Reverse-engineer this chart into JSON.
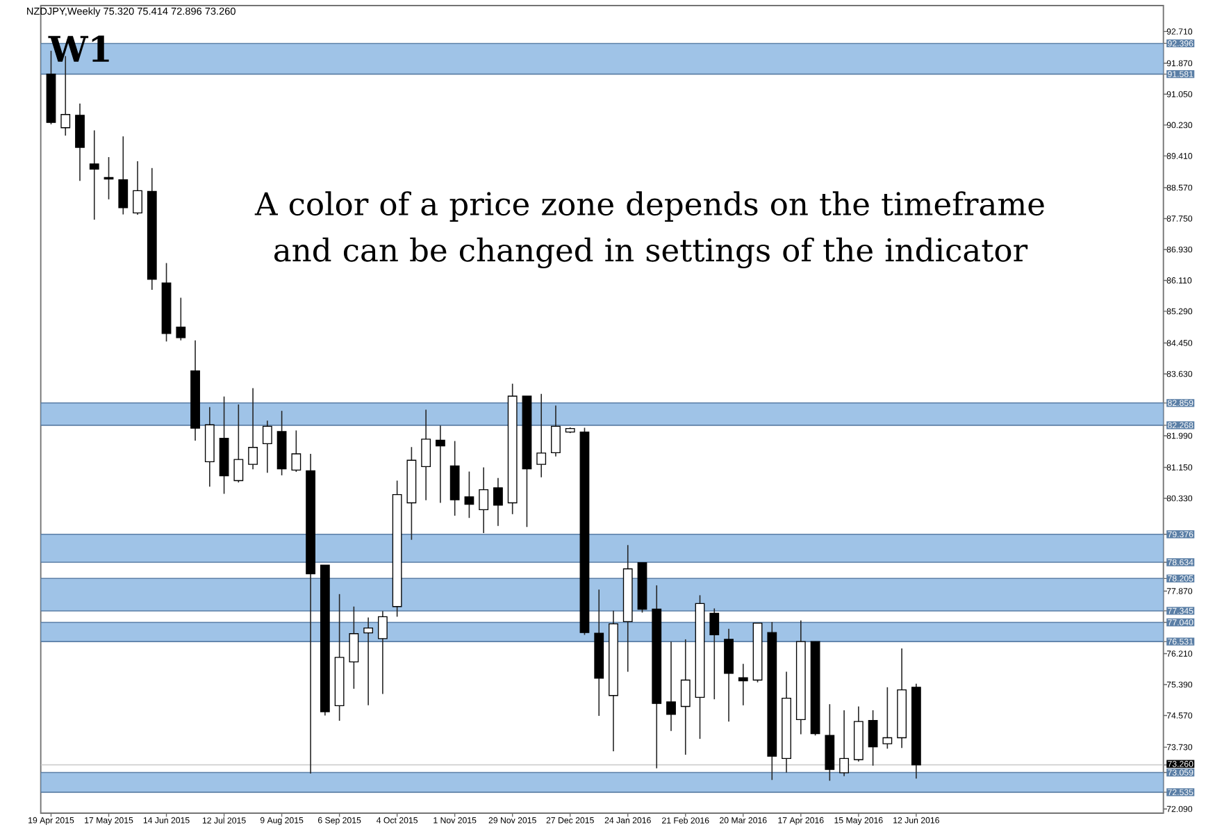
{
  "chart_data": {
    "type": "candlestick",
    "title": "NZDJPY,Weekly  75.320 75.414 72.896 73.260",
    "annotations": [
      "W1",
      "A color of a price zone depends on the timeframe and can be changed in settings of the indicator"
    ],
    "x": [
      "2015-04-19",
      "2015-04-26",
      "2015-05-03",
      "2015-05-10",
      "2015-05-17",
      "2015-05-24",
      "2015-05-31",
      "2015-06-07",
      "2015-06-14",
      "2015-06-21",
      "2015-06-28",
      "2015-07-05",
      "2015-07-12",
      "2015-07-19",
      "2015-07-26",
      "2015-08-02",
      "2015-08-09",
      "2015-08-16",
      "2015-08-23",
      "2015-08-30",
      "2015-09-06",
      "2015-09-13",
      "2015-09-20",
      "2015-09-27",
      "2015-10-04",
      "2015-10-11",
      "2015-10-18",
      "2015-10-25",
      "2015-11-01",
      "2015-11-08",
      "2015-11-15",
      "2015-11-22",
      "2015-11-29",
      "2015-12-06",
      "2015-12-13",
      "2015-12-20",
      "2015-12-27",
      "2016-01-03",
      "2016-01-10",
      "2016-01-17",
      "2016-01-24",
      "2016-01-31",
      "2016-02-07",
      "2016-02-14",
      "2016-02-21",
      "2016-02-28",
      "2016-03-06",
      "2016-03-13",
      "2016-03-20",
      "2016-03-27",
      "2016-04-03",
      "2016-04-10",
      "2016-04-17",
      "2016-04-24",
      "2016-05-01",
      "2016-05-08",
      "2016-05-15",
      "2016-05-22",
      "2016-05-29",
      "2016-06-05",
      "2016-06-12"
    ],
    "ohlc": [
      [
        91.58,
        92.2,
        90.25,
        90.3
      ],
      [
        90.16,
        92.06,
        89.95,
        90.51
      ],
      [
        90.49,
        90.8,
        88.75,
        89.64
      ],
      [
        89.2,
        90.09,
        87.72,
        89.06
      ],
      [
        88.84,
        89.38,
        88.26,
        88.8
      ],
      [
        88.78,
        89.93,
        87.86,
        88.04
      ],
      [
        87.9,
        89.27,
        87.85,
        88.49
      ],
      [
        88.47,
        89.09,
        85.86,
        86.14
      ],
      [
        86.04,
        86.57,
        84.49,
        84.7
      ],
      [
        84.87,
        85.65,
        84.52,
        84.59
      ],
      [
        83.71,
        84.52,
        81.86,
        82.19
      ],
      [
        81.3,
        82.75,
        80.64,
        82.28
      ],
      [
        81.92,
        83.03,
        80.45,
        80.93
      ],
      [
        80.8,
        82.82,
        80.75,
        81.36
      ],
      [
        81.23,
        83.25,
        81.1,
        81.68
      ],
      [
        81.78,
        82.39,
        81.01,
        82.24
      ],
      [
        82.1,
        82.65,
        80.94,
        81.11
      ],
      [
        81.08,
        82.13,
        81.03,
        81.51
      ],
      [
        81.06,
        81.51,
        73.03,
        78.33
      ],
      [
        78.56,
        78.56,
        74.57,
        74.67
      ],
      [
        74.83,
        77.79,
        74.43,
        76.11
      ],
      [
        75.99,
        77.46,
        75.28,
        76.74
      ],
      [
        76.76,
        77.17,
        74.84,
        76.89
      ],
      [
        76.61,
        77.34,
        75.14,
        77.19
      ],
      [
        77.46,
        80.8,
        77.19,
        80.43
      ],
      [
        80.21,
        81.69,
        79.23,
        81.34
      ],
      [
        81.17,
        82.68,
        80.28,
        81.9
      ],
      [
        81.87,
        82.26,
        80.21,
        81.72
      ],
      [
        81.19,
        81.85,
        79.87,
        80.29
      ],
      [
        80.37,
        81.04,
        79.81,
        80.17
      ],
      [
        80.03,
        81.15,
        79.41,
        80.56
      ],
      [
        80.61,
        80.87,
        79.6,
        80.15
      ],
      [
        80.21,
        83.37,
        79.91,
        83.04
      ],
      [
        83.04,
        83.04,
        79.57,
        81.11
      ],
      [
        81.23,
        83.1,
        80.89,
        81.53
      ],
      [
        81.54,
        82.79,
        81.44,
        82.24
      ],
      [
        82.09,
        82.21,
        82.06,
        82.18
      ],
      [
        82.09,
        82.2,
        76.71,
        76.77
      ],
      [
        76.75,
        77.91,
        74.56,
        75.56
      ],
      [
        75.1,
        77.35,
        73.62,
        77.0
      ],
      [
        77.06,
        79.09,
        75.73,
        78.46
      ],
      [
        78.62,
        78.62,
        77.3,
        77.39
      ],
      [
        77.39,
        78.02,
        73.17,
        74.89
      ],
      [
        74.93,
        76.53,
        74.16,
        74.6
      ],
      [
        74.81,
        76.59,
        73.53,
        75.51
      ],
      [
        75.05,
        77.76,
        73.95,
        77.54
      ],
      [
        77.28,
        77.41,
        75.0,
        76.71
      ],
      [
        76.59,
        76.87,
        74.41,
        75.69
      ],
      [
        75.57,
        75.94,
        74.84,
        75.49
      ],
      [
        75.51,
        77.02,
        75.45,
        77.02
      ],
      [
        76.77,
        77.05,
        72.86,
        73.49
      ],
      [
        73.43,
        75.73,
        73.06,
        75.03
      ],
      [
        74.46,
        77.09,
        74.07,
        76.53
      ],
      [
        76.53,
        76.53,
        74.04,
        74.09
      ],
      [
        74.04,
        74.87,
        72.84,
        73.14
      ],
      [
        73.05,
        74.71,
        72.96,
        73.43
      ],
      [
        73.4,
        74.81,
        73.35,
        74.41
      ],
      [
        74.44,
        74.71,
        73.24,
        73.74
      ],
      [
        73.82,
        75.32,
        73.69,
        73.98
      ],
      [
        73.98,
        76.35,
        73.71,
        75.25
      ],
      [
        75.32,
        75.414,
        72.896,
        73.26
      ]
    ],
    "xlim": [
      "2015-04-14",
      "2016-10-10"
    ],
    "xticks": [
      {
        "value": "2015-04-19",
        "label": "19 Apr 2015"
      },
      {
        "value": "2015-05-17",
        "label": "17 May 2015"
      },
      {
        "value": "2015-06-14",
        "label": "14 Jun 2015"
      },
      {
        "value": "2015-07-12",
        "label": "12 Jul 2015"
      },
      {
        "value": "2015-08-09",
        "label": "9 Aug 2015"
      },
      {
        "value": "2015-09-06",
        "label": "6 Sep 2015"
      },
      {
        "value": "2015-10-04",
        "label": "4 Oct 2015"
      },
      {
        "value": "2015-11-01",
        "label": "1 Nov 2015"
      },
      {
        "value": "2015-11-29",
        "label": "29 Nov 2015"
      },
      {
        "value": "2015-12-27",
        "label": "27 Dec 2015"
      },
      {
        "value": "2016-01-24",
        "label": "24 Jan 2016"
      },
      {
        "value": "2016-02-21",
        "label": "21 Feb 2016"
      },
      {
        "value": "2016-03-20",
        "label": "20 Mar 2016"
      },
      {
        "value": "2016-04-17",
        "label": "17 Apr 2016"
      },
      {
        "value": "2016-05-15",
        "label": "15 May 2016"
      },
      {
        "value": "2016-06-12",
        "label": "12 Jun 2016"
      }
    ],
    "ylim": [
      71.98,
      93.4
    ],
    "yticks": [
      {
        "value": 92.71,
        "label": "92.710"
      },
      {
        "value": 92.396,
        "label": "92.396"
      },
      {
        "value": 91.87,
        "label": "91.870"
      },
      {
        "value": 91.581,
        "label": "91.581"
      },
      {
        "value": 91.05,
        "label": "91.050"
      },
      {
        "value": 90.23,
        "label": "90.230"
      },
      {
        "value": 89.41,
        "label": "89.410"
      },
      {
        "value": 88.57,
        "label": "88.570"
      },
      {
        "value": 87.75,
        "label": "87.750"
      },
      {
        "value": 86.93,
        "label": "86.930"
      },
      {
        "value": 86.11,
        "label": "86.110"
      },
      {
        "value": 85.29,
        "label": "85.290"
      },
      {
        "value": 84.45,
        "label": "84.450"
      },
      {
        "value": 83.63,
        "label": "83.630"
      },
      {
        "value": 82.859,
        "label": "82.859"
      },
      {
        "value": 82.268,
        "label": "82.268"
      },
      {
        "value": 81.99,
        "label": "81.990"
      },
      {
        "value": 81.15,
        "label": "81.150"
      },
      {
        "value": 80.33,
        "label": "80.330"
      },
      {
        "value": 79.376,
        "label": "79.376"
      },
      {
        "value": 78.634,
        "label": "78.634"
      },
      {
        "value": 78.205,
        "label": "78.205"
      },
      {
        "value": 77.87,
        "label": "77.870"
      },
      {
        "value": 77.345,
        "label": "77.345"
      },
      {
        "value": 77.04,
        "label": "77.040"
      },
      {
        "value": 76.531,
        "label": "76.531"
      },
      {
        "value": 76.21,
        "label": "76.210"
      },
      {
        "value": 75.39,
        "label": "75.390"
      },
      {
        "value": 74.57,
        "label": "74.570"
      },
      {
        "value": 73.73,
        "label": "73.730"
      },
      {
        "value": 73.26,
        "label": "73.260"
      },
      {
        "value": 73.059,
        "label": "73.059"
      },
      {
        "value": 72.535,
        "label": "72.535"
      },
      {
        "value": 72.09,
        "label": "72.090"
      }
    ],
    "bands": [
      {
        "axis": "y",
        "from": 91.581,
        "to": 92.396,
        "color": "#9fc3e7"
      },
      {
        "axis": "y",
        "from": 82.268,
        "to": 82.859,
        "color": "#9fc3e7"
      },
      {
        "axis": "y",
        "from": 78.634,
        "to": 79.376,
        "color": "#9fc3e7"
      },
      {
        "axis": "y",
        "from": 77.345,
        "to": 78.205,
        "color": "#9fc3e7"
      },
      {
        "axis": "y",
        "from": 76.531,
        "to": 77.04,
        "color": "#9fc3e7"
      },
      {
        "axis": "y",
        "from": 72.535,
        "to": 73.059,
        "color": "#9fc3e7"
      }
    ],
    "ref_lines": [
      {
        "axis": "y",
        "value": 73.26,
        "color": "#c8c8c8"
      }
    ]
  }
}
